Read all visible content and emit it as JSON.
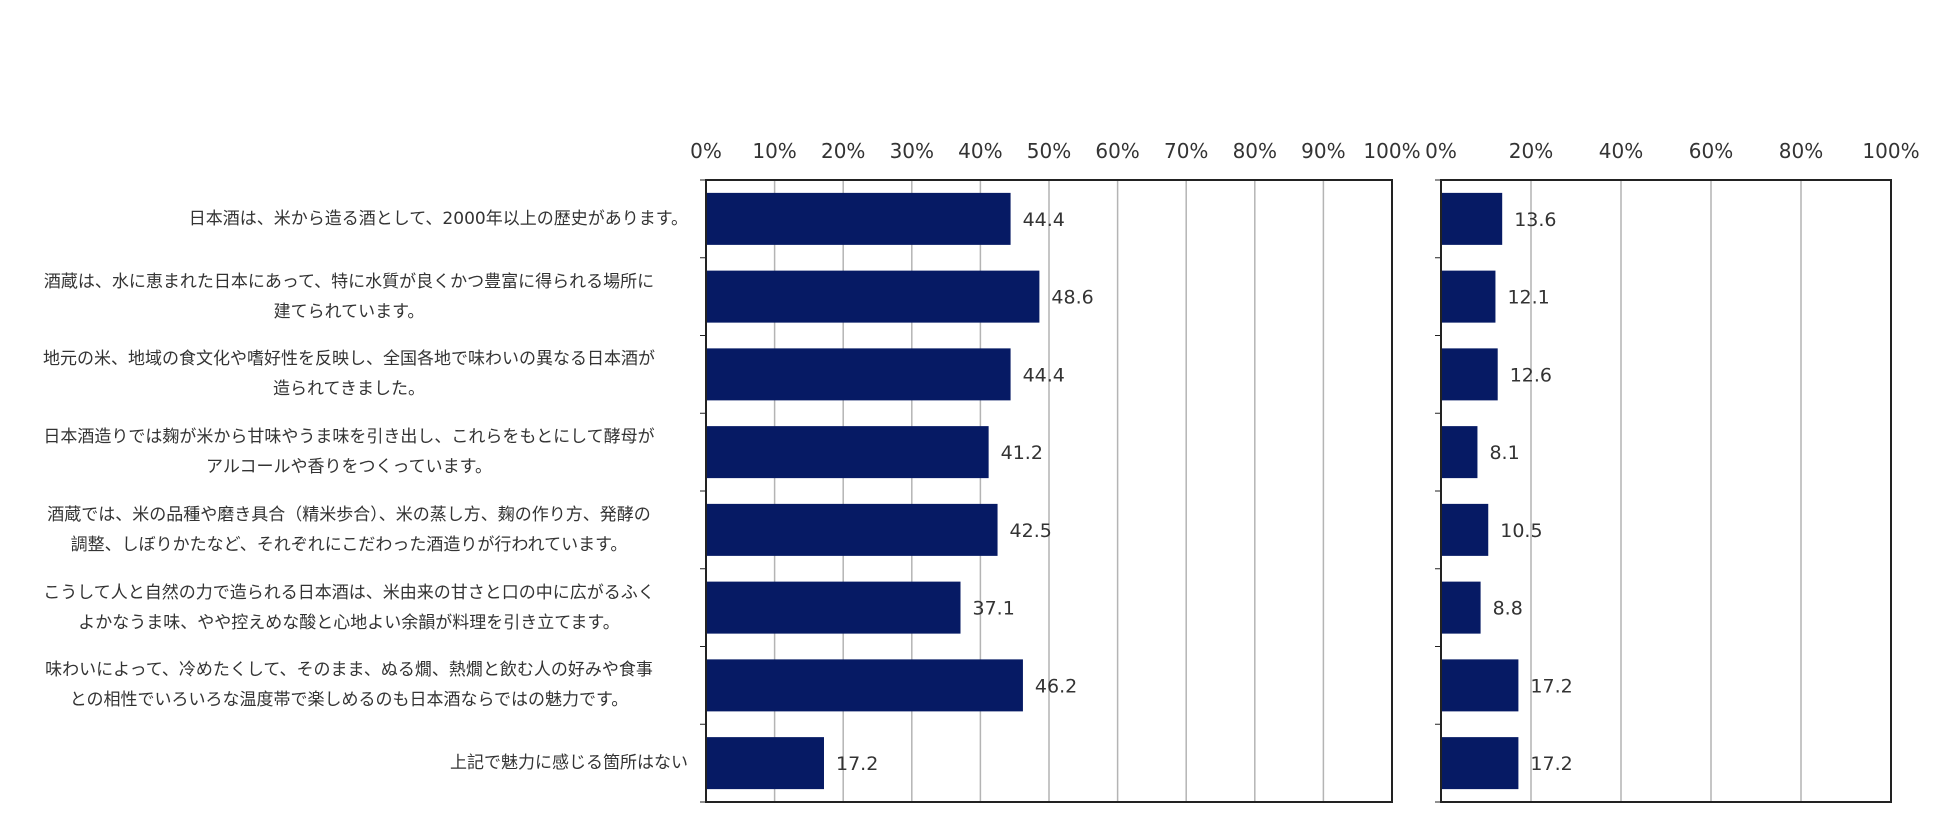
{
  "colors": {
    "bar": "#061a64",
    "grid": "#b4b4b4",
    "frame": "#222222"
  },
  "chart_data": [
    {
      "type": "bar",
      "orientation": "horizontal",
      "xlim": [
        0,
        100
      ],
      "tick_labels": [
        "0%",
        "10%",
        "20%",
        "30%",
        "40%",
        "50%",
        "60%",
        "70%",
        "80%",
        "90%",
        "100%"
      ],
      "grid": true,
      "categories": [
        "日本酒は、米から造る酒として、2000年以上の歴史があります。",
        "酒蔵は、水に恵まれた日本にあって、特に水質が良くかつ豊富に得られる場所に建てられています。",
        "地元の米、地域の食文化や嗜好性を反映し、全国各地で味わいの異なる日本酒が造られてきました。",
        "日本酒造りでは麹が米から甘味やうま味を引き出し、これらをもとにして酵母がアルコールや香りをつくっています。",
        "酒蔵では、米の品種や磨き具合（精米歩合）、米の蒸し方、麹の作り方、発酵の調整、しぼりかたなど、それぞれにこだわった酒造りが行われています。",
        "こうして人と自然の力で造られる日本酒は、米由来の甘さと口の中に広がるふくよかなうま味、やや控えめな酸と心地よい余韻が料理を引き立てます。",
        "味わいによって、冷めたくして、そのまま、ぬる燗、熱燗と飲む人の好みや食事との相性でいろいろな温度帯で楽しめるのも日本酒ならではの魅力です。",
        "上記で魅力に感じる箇所はない"
      ],
      "category_lines": [
        [
          "日本酒は、米から造る酒として、2000年以上の歴史があります。"
        ],
        [
          "酒蔵は、水に恵まれた日本にあって、特に水質が良くかつ豊富に得られる場所に",
          "建てられています。"
        ],
        [
          "地元の米、地域の食文化や嗜好性を反映し、全国各地で味わいの異なる日本酒が",
          "造られてきました。"
        ],
        [
          "日本酒造りでは麹が米から甘味やうま味を引き出し、これらをもとにして酵母が",
          "アルコールや香りをつくっています。"
        ],
        [
          "酒蔵では、米の品種や磨き具合（精米歩合）、米の蒸し方、麹の作り方、発酵の",
          "調整、しぼりかたなど、それぞれにこだわった酒造りが行われています。"
        ],
        [
          "こうして人と自然の力で造られる日本酒は、米由来の甘さと口の中に広がるふく",
          "よかなうま味、やや控えめな酸と心地よい余韻が料理を引き立てます。"
        ],
        [
          "味わいによって、冷めたくして、そのまま、ぬる燗、熱燗と飲む人の好みや食事",
          "との相性でいろいろな温度帯で楽しめるのも日本酒ならではの魅力です。"
        ],
        [
          "上記で魅力に感じる箇所はない"
        ]
      ],
      "values": [
        44.4,
        48.6,
        44.4,
        41.2,
        42.5,
        37.1,
        46.2,
        17.2
      ],
      "data_labels": [
        "44.4",
        "48.6",
        "44.4",
        "41.2",
        "42.5",
        "37.1",
        "46.2",
        "17.2"
      ]
    },
    {
      "type": "bar",
      "orientation": "horizontal",
      "xlim": [
        0,
        100
      ],
      "tick_labels": [
        "0%",
        "20%",
        "40%",
        "60%",
        "80%",
        "100%"
      ],
      "grid": true,
      "values": [
        13.6,
        12.1,
        12.6,
        8.1,
        10.5,
        8.8,
        17.2,
        17.2
      ],
      "data_labels": [
        "13.6",
        "12.1",
        "12.6",
        "8.1",
        "10.5",
        "8.8",
        "17.2",
        "17.2"
      ]
    }
  ]
}
